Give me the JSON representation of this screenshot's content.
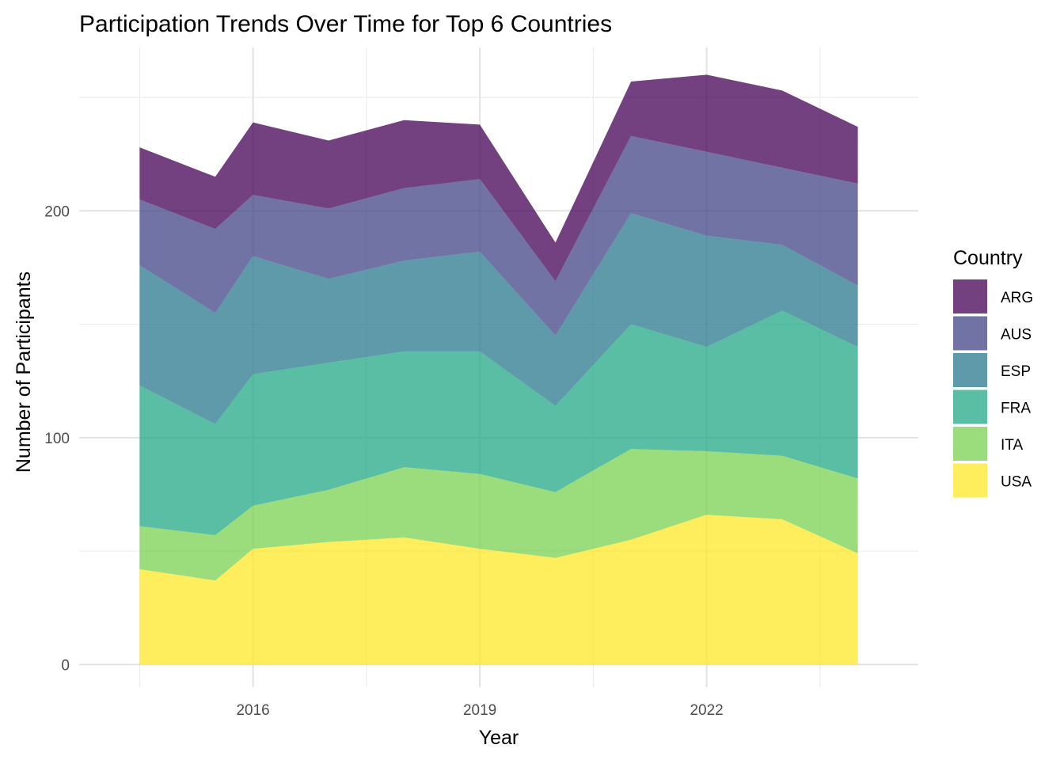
{
  "chart_data": {
    "type": "area",
    "stacked": true,
    "title": "Participation Trends Over Time for Top 6 Countries",
    "xlabel": "Year",
    "ylabel": "Number of Participants",
    "x": [
      2014.5,
      2015.5,
      2016,
      2017,
      2018,
      2019,
      2020,
      2021,
      2022,
      2023,
      2024
    ],
    "xlim": [
      2013.7,
      2024.8
    ],
    "ylim": [
      -10,
      272
    ],
    "x_ticks": [
      2016,
      2019,
      2022
    ],
    "x_minor_ticks": [
      2014.5,
      2017.5,
      2020.5,
      2023.5
    ],
    "y_ticks": [
      0,
      100,
      200
    ],
    "y_minor_ticks": [
      50,
      150,
      250
    ],
    "grid": true,
    "legend": {
      "title": "Country",
      "position": "right"
    },
    "series": [
      {
        "name": "USA",
        "color": "#FDE725",
        "values": [
          42,
          37,
          51,
          54,
          56,
          51,
          47,
          55,
          66,
          64,
          49
        ]
      },
      {
        "name": "ITA",
        "color": "#7AD151",
        "values": [
          19,
          20,
          19,
          23,
          31,
          33,
          29,
          40,
          28,
          28,
          33
        ]
      },
      {
        "name": "FRA",
        "color": "#22A884",
        "values": [
          62,
          49,
          58,
          56,
          51,
          54,
          38,
          55,
          46,
          64,
          58
        ]
      },
      {
        "name": "ESP",
        "color": "#2A788E",
        "values": [
          53,
          49,
          52,
          37,
          40,
          44,
          31,
          49,
          49,
          29,
          27
        ]
      },
      {
        "name": "AUS",
        "color": "#414487",
        "values": [
          29,
          37,
          27,
          31,
          32,
          32,
          24,
          34,
          37,
          34,
          45
        ]
      },
      {
        "name": "ARG",
        "color": "#440154",
        "values": [
          23,
          23,
          32,
          30,
          30,
          24,
          17,
          24,
          34,
          34,
          25
        ]
      }
    ]
  }
}
